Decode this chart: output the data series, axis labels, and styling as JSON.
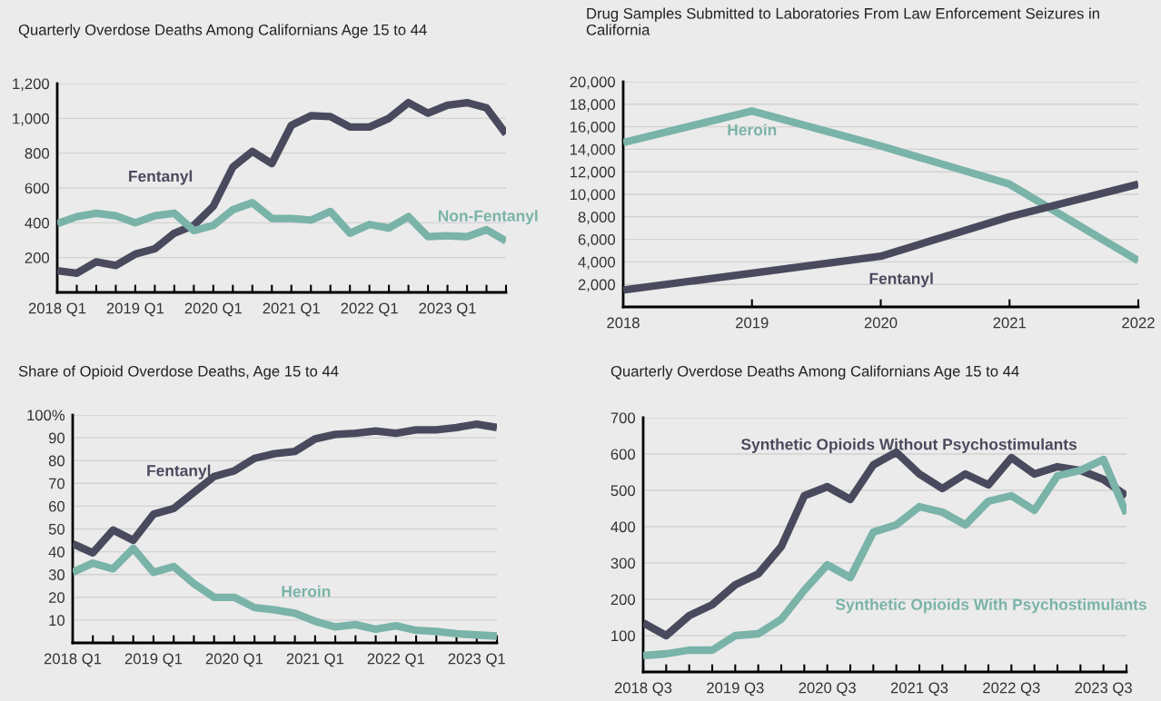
{
  "chart_data": [
    {
      "type": "line",
      "title": "Quarterly Overdose Deaths Among Californians Age 15 to 44",
      "categories": [
        "2018 Q1",
        null,
        null,
        null,
        "2019 Q1",
        null,
        null,
        null,
        "2020 Q1",
        null,
        null,
        null,
        "2021 Q1",
        null,
        null,
        null,
        "2022 Q1",
        null,
        null,
        null,
        "2023 Q1",
        null,
        null,
        null
      ],
      "series": [
        {
          "name": "Fentanyl",
          "color": "#4a4a5e",
          "values": [
            125,
            110,
            175,
            155,
            220,
            250,
            340,
            385,
            495,
            720,
            810,
            740,
            960,
            1015,
            1010,
            950,
            950,
            1000,
            1090,
            1030,
            1075,
            1090,
            1060,
            910
          ]
        },
        {
          "name": "Non-Fentanyl",
          "color": "#7ab3a8",
          "values": [
            395,
            435,
            455,
            440,
            400,
            440,
            455,
            355,
            385,
            475,
            515,
            425,
            425,
            415,
            465,
            340,
            390,
            370,
            435,
            320,
            325,
            320,
            360,
            295
          ]
        }
      ],
      "ylim": [
        0,
        1200
      ],
      "yticks": [
        {
          "value": 200,
          "label": "200"
        },
        {
          "value": 400,
          "label": "400"
        },
        {
          "value": 600,
          "label": "600"
        },
        {
          "value": 800,
          "label": "800"
        },
        {
          "value": 1000,
          "label": "1,000"
        },
        {
          "value": 1200,
          "label": "1,200"
        }
      ],
      "grid": "y",
      "legend": false
    },
    {
      "type": "line",
      "title": "Drug Samples Submitted to Laboratories From Law Enforcement Seizures in California",
      "x": [
        2018,
        2019,
        2020,
        2021,
        2022
      ],
      "series": [
        {
          "name": "Heroin",
          "color": "#7ab3a8",
          "values": [
            14600,
            17400,
            14300,
            10900,
            4100
          ]
        },
        {
          "name": "Fentanyl",
          "color": "#4a4a5e",
          "values": [
            1500,
            3000,
            4500,
            8000,
            10900
          ]
        }
      ],
      "xlim": [
        2018,
        2022
      ],
      "xticks": [
        2018,
        2019,
        2020,
        2021,
        2022
      ],
      "ylim": [
        0,
        20000
      ],
      "yticks": [
        {
          "value": 2000,
          "label": "2,000"
        },
        {
          "value": 4000,
          "label": "4,000"
        },
        {
          "value": 6000,
          "label": "6,000"
        },
        {
          "value": 8000,
          "label": "8,000"
        },
        {
          "value": 10000,
          "label": "10,000"
        },
        {
          "value": 12000,
          "label": "12,000"
        },
        {
          "value": 14000,
          "label": "14,000"
        },
        {
          "value": 16000,
          "label": "16,000"
        },
        {
          "value": 18000,
          "label": "18,000"
        },
        {
          "value": 20000,
          "label": "20,000"
        }
      ],
      "grid": "y",
      "legend": false
    },
    {
      "type": "line",
      "title": "Share of Opioid Overdose Deaths, Age 15 to 44",
      "categories": [
        "2018 Q1",
        null,
        null,
        null,
        "2019 Q1",
        null,
        null,
        null,
        "2020 Q1",
        null,
        null,
        null,
        "2021 Q1",
        null,
        null,
        null,
        "2022 Q1",
        null,
        null,
        null,
        "2023 Q1",
        null
      ],
      "series": [
        {
          "name": "Fentanyl",
          "color": "#4a4a5e",
          "values": [
            43.5,
            39.5,
            49.5,
            45,
            56.5,
            59,
            66,
            73,
            75.5,
            81,
            83,
            84,
            89.5,
            91.5,
            92,
            93,
            92,
            93.5,
            93.5,
            94.5,
            96,
            94.5
          ]
        },
        {
          "name": "Heroin",
          "color": "#7ab3a8",
          "values": [
            31,
            35,
            32.5,
            41.5,
            31,
            33.5,
            26,
            20,
            20,
            15.5,
            14.5,
            13,
            9.5,
            7,
            8,
            6,
            7.5,
            5.5,
            5,
            4,
            3.5,
            3
          ]
        }
      ],
      "ylim": [
        0,
        100
      ],
      "yticks": [
        10,
        20,
        30,
        40,
        50,
        60,
        70,
        80,
        90,
        {
          "value": 100,
          "label": "100%"
        }
      ],
      "grid": "y",
      "legend": false
    },
    {
      "type": "line",
      "title": "Quarterly Overdose Deaths Among Californians Age 15 to 44",
      "categories": [
        "2018 Q3",
        null,
        null,
        null,
        "2019 Q3",
        null,
        null,
        null,
        "2020 Q3",
        null,
        null,
        null,
        "2021 Q3",
        null,
        null,
        null,
        "2022 Q3",
        null,
        null,
        null,
        "2023 Q3",
        null
      ],
      "series": [
        {
          "name": "Synthetic Opioids Without Psychostimulants",
          "color": "#4a4a5e",
          "values": [
            135,
            100,
            155,
            185,
            240,
            270,
            345,
            485,
            510,
            475,
            570,
            605,
            545,
            505,
            545,
            515,
            590,
            545,
            565,
            555,
            530,
            485
          ]
        },
        {
          "name": "Synthetic Opioids With Psychostimulants",
          "color": "#7ab3a8",
          "values": [
            45,
            50,
            60,
            60,
            100,
            105,
            145,
            225,
            295,
            260,
            385,
            405,
            455,
            440,
            405,
            470,
            485,
            445,
            540,
            555,
            585,
            435
          ]
        }
      ],
      "ylim": [
        0,
        700
      ],
      "yticks": [
        100,
        200,
        300,
        400,
        500,
        600,
        700
      ],
      "grid": "y",
      "legend": false
    }
  ]
}
